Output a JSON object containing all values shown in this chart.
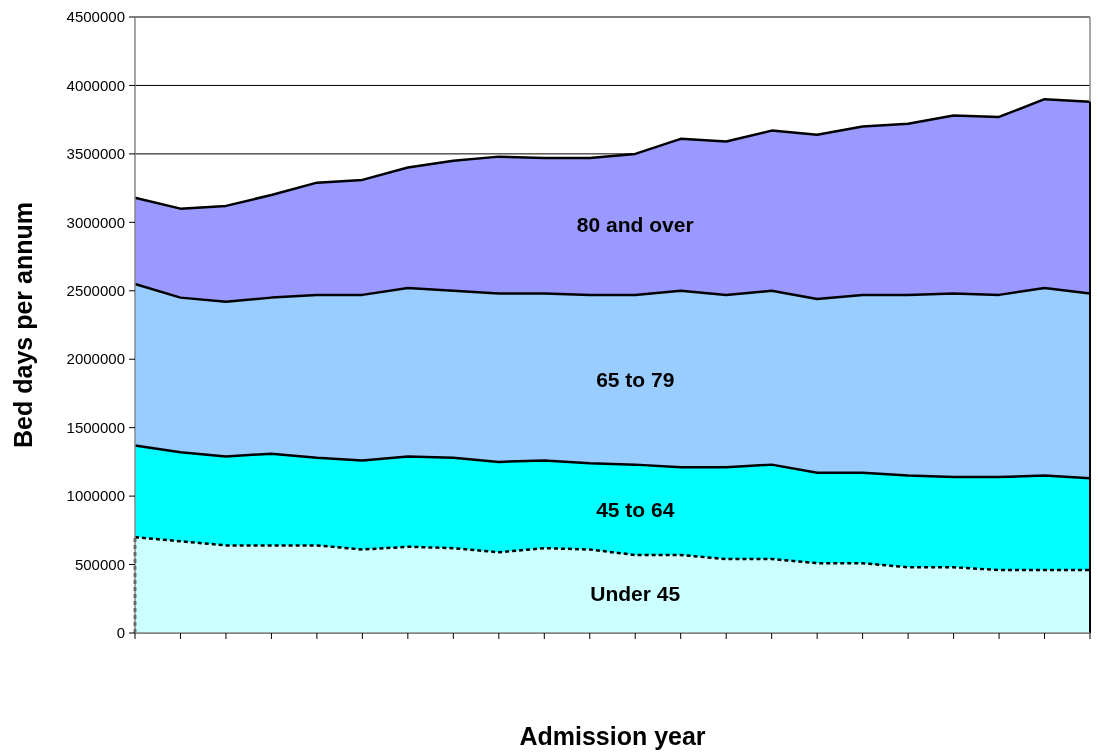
{
  "chart_data": {
    "type": "area",
    "stacked": true,
    "xlabel": "Admission year",
    "ylabel": "Bed days per annum",
    "categories": [
      null,
      null,
      null,
      null,
      null,
      null,
      null,
      null,
      null,
      null,
      null,
      null,
      null,
      null,
      null,
      null,
      null,
      null,
      null,
      null,
      null,
      null
    ],
    "ylim": [
      0,
      4500000
    ],
    "yticks": [
      0,
      500000,
      1000000,
      1500000,
      2000000,
      2500000,
      3000000,
      3500000,
      4000000,
      4500000
    ],
    "grid": "y",
    "series": [
      {
        "name": "Under 45",
        "color": "#ccffff",
        "line_style": "dashed",
        "values": [
          700000,
          670000,
          640000,
          640000,
          640000,
          610000,
          630000,
          620000,
          590000,
          620000,
          610000,
          570000,
          570000,
          540000,
          540000,
          510000,
          510000,
          480000,
          480000,
          460000,
          460000,
          460000
        ]
      },
      {
        "name": "45 to 64",
        "color": "#00ffff",
        "values": [
          670000,
          650000,
          650000,
          670000,
          640000,
          650000,
          660000,
          660000,
          660000,
          640000,
          630000,
          660000,
          640000,
          670000,
          690000,
          660000,
          660000,
          670000,
          660000,
          680000,
          690000,
          670000
        ]
      },
      {
        "name": "65 to 79",
        "color": "#99ccff",
        "values": [
          1180000,
          1130000,
          1130000,
          1140000,
          1190000,
          1210000,
          1230000,
          1220000,
          1230000,
          1220000,
          1230000,
          1240000,
          1290000,
          1260000,
          1270000,
          1270000,
          1300000,
          1320000,
          1340000,
          1330000,
          1370000,
          1350000
        ]
      },
      {
        "name": "80 and over",
        "color": "#9999ff",
        "values": [
          630000,
          650000,
          700000,
          750000,
          820000,
          840000,
          880000,
          950000,
          1000000,
          990000,
          1000000,
          1030000,
          1110000,
          1120000,
          1170000,
          1200000,
          1230000,
          1250000,
          1300000,
          1300000,
          1380000,
          1400000
        ]
      }
    ]
  }
}
